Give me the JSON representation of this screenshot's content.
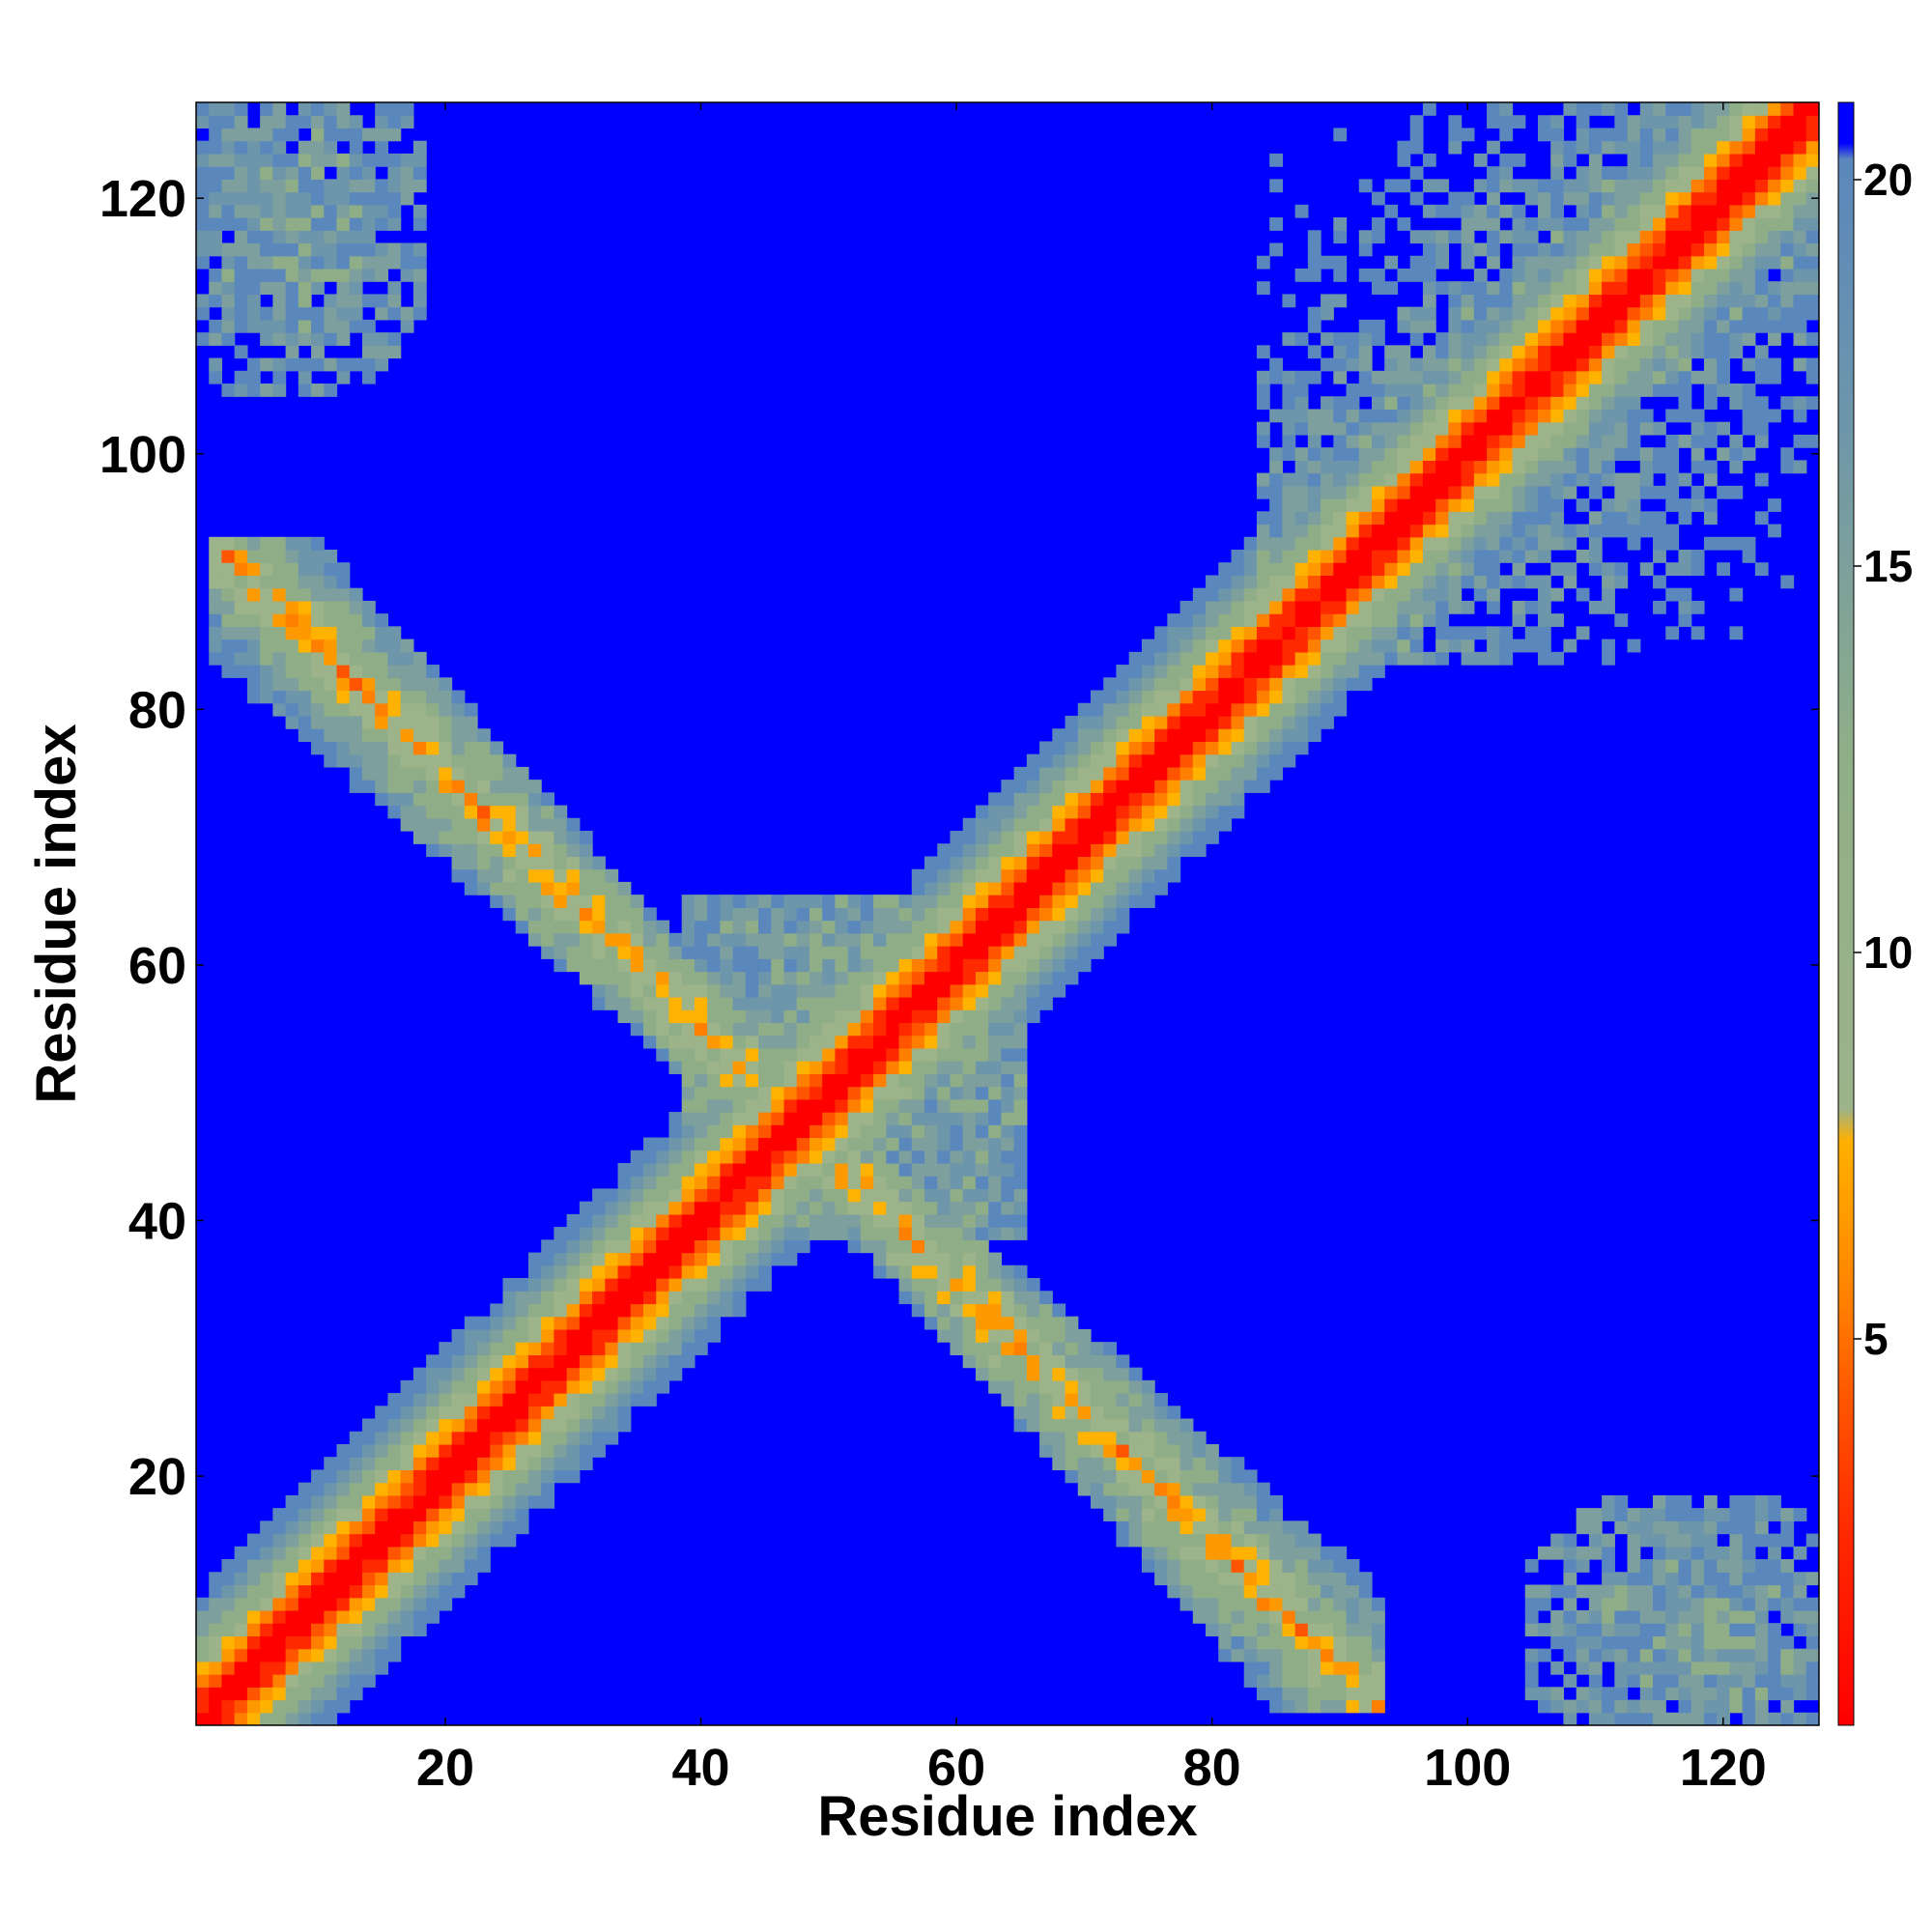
{
  "chart_data": {
    "type": "heatmap",
    "title": "",
    "xlabel": "Residue index",
    "ylabel": "Residue index",
    "n_residues": 127,
    "xlim": [
      1,
      127
    ],
    "ylim": [
      1,
      127
    ],
    "x_ticks": [
      20,
      40,
      60,
      80,
      100,
      120
    ],
    "y_ticks": [
      20,
      40,
      60,
      80,
      100,
      120
    ],
    "colorbar": {
      "min": 0,
      "max": 21,
      "ticks": [
        5,
        10,
        15,
        20
      ],
      "colors": [
        "#ff0000",
        "#ff3300",
        "#ff5500",
        "#ff7f00",
        "#ff9900",
        "#ffb300",
        "#8fae88",
        "#6e96aa",
        "#5a87bc",
        "#0000ff"
      ],
      "color_stops": [
        0,
        2.5,
        4.0,
        5.0,
        6.0,
        7.0,
        8.0,
        13.0,
        17.0,
        20.5,
        21
      ]
    },
    "structure": {
      "main_diagonal": "distance ~0 on diagonal rising to ~20 over about 12 residues",
      "antiparallel_band": "contacts along i + j ≈ 95 from residue 2 to 93 with distances ~5-15",
      "corner_contacts": "patches at (1-18, 105-127) and (105-127, 1-18)"
    },
    "colors": {
      "background": "#ffffff",
      "far": "#0000ff"
    }
  }
}
